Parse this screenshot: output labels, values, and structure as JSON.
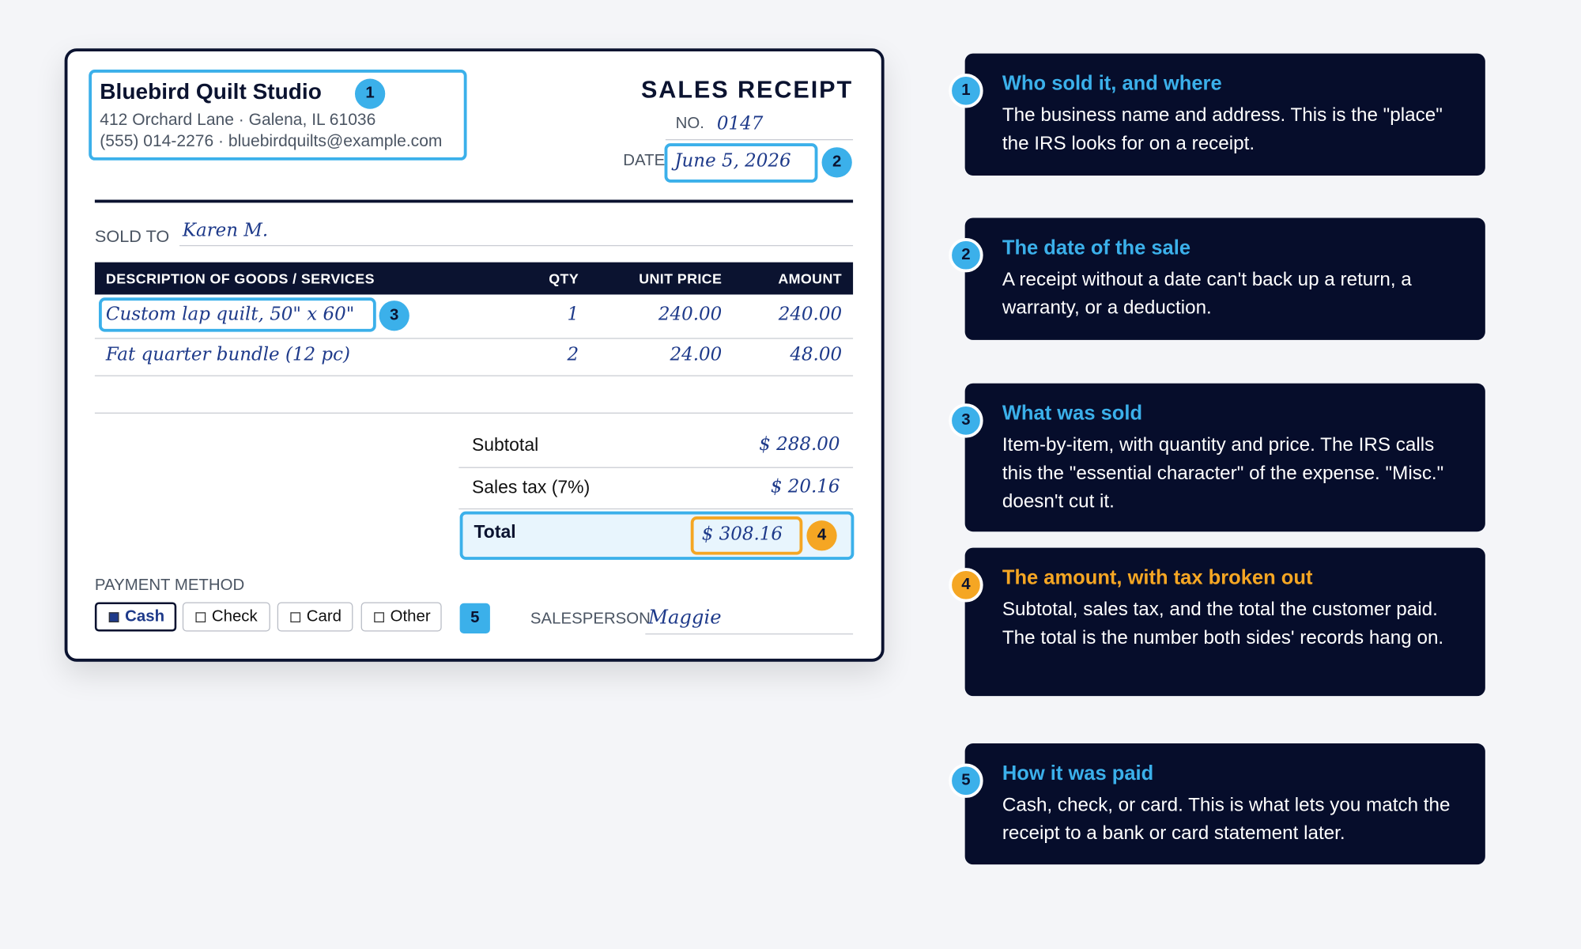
{
  "receipt": {
    "business": {
      "name": "Bluebird Quilt Studio",
      "address": "412 Orchard Lane · Galena, IL 61036",
      "contact": "(555) 014-2276 · bluebirdquilts@example.com"
    },
    "title": "SALES RECEIPT",
    "number_label": "NO.",
    "number": "0147",
    "date_label": "DATE",
    "date": "June 5, 2026",
    "sold_to_label": "SOLD TO",
    "sold_to": "Karen M.",
    "headers": [
      "DESCRIPTION OF GOODS / SERVICES",
      "QTY",
      "UNIT PRICE",
      "AMOUNT"
    ],
    "rows": [
      [
        "Custom lap quilt, 50\" x 60\"",
        "1",
        "240.00",
        "240.00"
      ],
      [
        "Fat quarter bundle (12 pc)",
        "2",
        "24.00",
        "48.00"
      ]
    ],
    "currency": "$",
    "subtotal_label": "Subtotal",
    "subtotal": "288.00",
    "tax_label": "Sales tax (7%)",
    "tax": "20.16",
    "total_label": "Total",
    "total": "308.16",
    "payment_label": "PAYMENT METHOD",
    "payment_options": [
      "Cash",
      "Check",
      "Card",
      "Other"
    ],
    "payment_selected": 0,
    "salesperson_label": "SALESPERSON",
    "salesperson": "Maggie"
  },
  "callouts": [
    {
      "number": "1",
      "title": "Who sold it, and where",
      "body": "The business name and address. This is the \"place\" the IRS looks for on a receipt.",
      "color": "#3bb0ea"
    },
    {
      "number": "2",
      "title": "The date of the sale",
      "body": "A receipt without a date can't back up a return, a warranty, or a deduction.",
      "color": "#3bb0ea"
    },
    {
      "number": "3",
      "title": "What was sold",
      "body": "Item-by-item, with quantity and price. The IRS calls this the \"essential character\" of the expense. \"Misc.\" doesn't cut it.",
      "color": "#3bb0ea"
    },
    {
      "number": "4",
      "title": "The amount, with tax broken out",
      "body": "Subtotal, sales tax, and the total the customer paid. The total is the number both sides' records hang on.",
      "color": "#f5a623"
    },
    {
      "number": "5",
      "title": "How it was paid",
      "body": "Cash, check, or card. This is what lets you match the receipt to a bank or card statement later.",
      "color": "#3bb0ea"
    }
  ]
}
